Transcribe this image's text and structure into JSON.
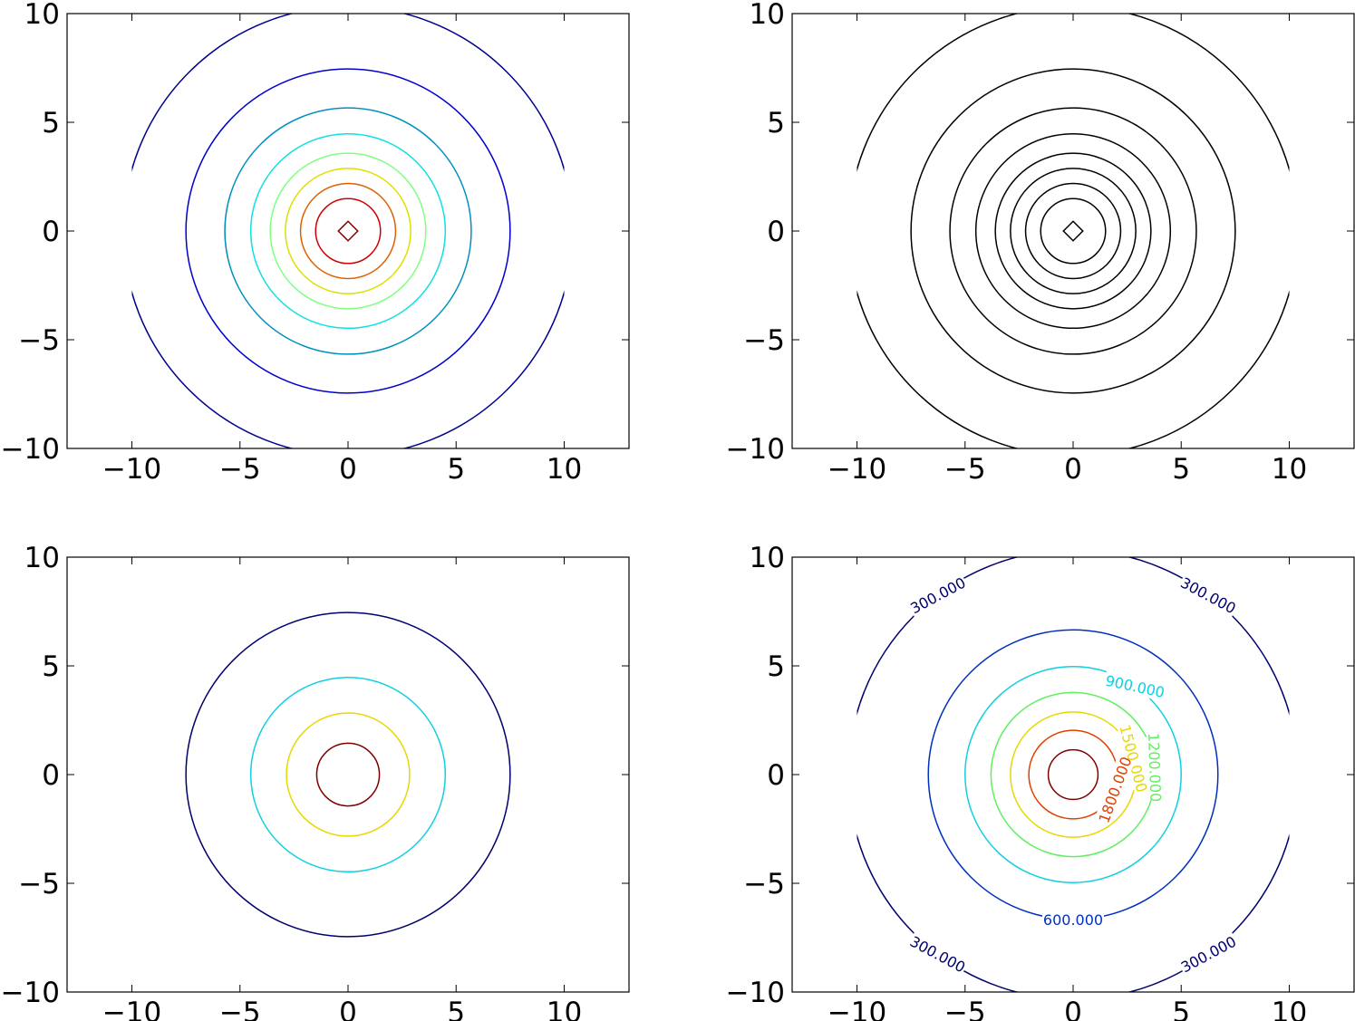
{
  "chart_data": [
    {
      "type": "contour",
      "panel": "top-left",
      "xlim": [
        -13,
        13
      ],
      "ylim": [
        -10,
        10
      ],
      "xticks": [
        -10,
        -5,
        0,
        5,
        10
      ],
      "yticks": [
        -10,
        -5,
        0,
        5,
        10
      ],
      "xtick_labels": [
        "−10",
        "−5",
        "0",
        "5",
        "10"
      ],
      "ytick_labels": [
        "−10",
        "−5",
        "0",
        "5",
        "10"
      ],
      "grid": false,
      "levels": [
        {
          "radius": 10.4,
          "color": "#00008f"
        },
        {
          "radius": 7.5,
          "color": "#0000d0"
        },
        {
          "radius": 5.7,
          "color": "#0090c0"
        },
        {
          "radius": 4.5,
          "color": "#10e0e0"
        },
        {
          "radius": 3.6,
          "color": "#80ff80"
        },
        {
          "radius": 2.9,
          "color": "#e0e000"
        },
        {
          "radius": 2.2,
          "color": "#e06000"
        },
        {
          "radius": 1.5,
          "color": "#d00000"
        },
        {
          "radius": 0.45,
          "color": "#800000",
          "shape": "diamond"
        }
      ],
      "clip_to_x": [
        -10,
        10
      ]
    },
    {
      "type": "contour",
      "panel": "top-right",
      "xlim": [
        -13,
        13
      ],
      "ylim": [
        -10,
        10
      ],
      "xticks": [
        -10,
        -5,
        0,
        5,
        10
      ],
      "yticks": [
        -10,
        -5,
        0,
        5,
        10
      ],
      "xtick_labels": [
        "−10",
        "−5",
        "0",
        "5",
        "10"
      ],
      "ytick_labels": [
        "−10",
        "−5",
        "0",
        "5",
        "10"
      ],
      "grid": false,
      "levels": [
        {
          "radius": 10.4,
          "color": "#000000"
        },
        {
          "radius": 7.5,
          "color": "#000000"
        },
        {
          "radius": 5.7,
          "color": "#000000"
        },
        {
          "radius": 4.5,
          "color": "#000000"
        },
        {
          "radius": 3.6,
          "color": "#000000"
        },
        {
          "radius": 2.9,
          "color": "#000000"
        },
        {
          "radius": 2.2,
          "color": "#000000"
        },
        {
          "radius": 1.5,
          "color": "#000000"
        },
        {
          "radius": 0.45,
          "color": "#000000",
          "shape": "diamond"
        }
      ],
      "clip_to_x": [
        -10,
        10
      ]
    },
    {
      "type": "contour",
      "panel": "bottom-left",
      "xlim": [
        -13,
        13
      ],
      "ylim": [
        -10,
        10
      ],
      "xticks": [
        -10,
        -5,
        0,
        5,
        10
      ],
      "yticks": [
        -10,
        -5,
        0,
        5,
        10
      ],
      "xtick_labels": [
        "−10",
        "−5",
        "0",
        "5",
        "10"
      ],
      "ytick_labels": [
        "−10",
        "−5",
        "0",
        "5",
        "10"
      ],
      "grid": false,
      "levels": [
        {
          "radius": 7.5,
          "color": "#00006f"
        },
        {
          "radius": 4.5,
          "color": "#10d0e0"
        },
        {
          "radius": 2.85,
          "color": "#e8d800"
        },
        {
          "radius": 1.45,
          "color": "#800000"
        }
      ],
      "clip_to_x": [
        -10,
        10
      ]
    },
    {
      "type": "contour",
      "panel": "bottom-right",
      "xlim": [
        -13,
        13
      ],
      "ylim": [
        -10,
        10
      ],
      "xticks": [
        -10,
        -5,
        0,
        5,
        10
      ],
      "yticks": [
        -10,
        -5,
        0,
        5,
        10
      ],
      "xtick_labels": [
        "−10",
        "−5",
        "0",
        "5",
        "10"
      ],
      "ytick_labels": [
        "−10",
        "−5",
        "0",
        "5",
        "10"
      ],
      "grid": false,
      "levels": [
        {
          "radius": 10.4,
          "color": "#00006f",
          "label": "300.000"
        },
        {
          "radius": 6.7,
          "color": "#0030c0",
          "label": "600.000"
        },
        {
          "radius": 5.0,
          "color": "#10d0e0",
          "label": "900.000"
        },
        {
          "radius": 3.8,
          "color": "#60f060",
          "label": "1200.000"
        },
        {
          "radius": 2.9,
          "color": "#e8d800",
          "label": "1500.000"
        },
        {
          "radius": 2.05,
          "color": "#e04000",
          "label": "1800.000"
        },
        {
          "radius": 1.15,
          "color": "#800000"
        }
      ],
      "clip_to_x": [
        -10,
        10
      ]
    }
  ]
}
